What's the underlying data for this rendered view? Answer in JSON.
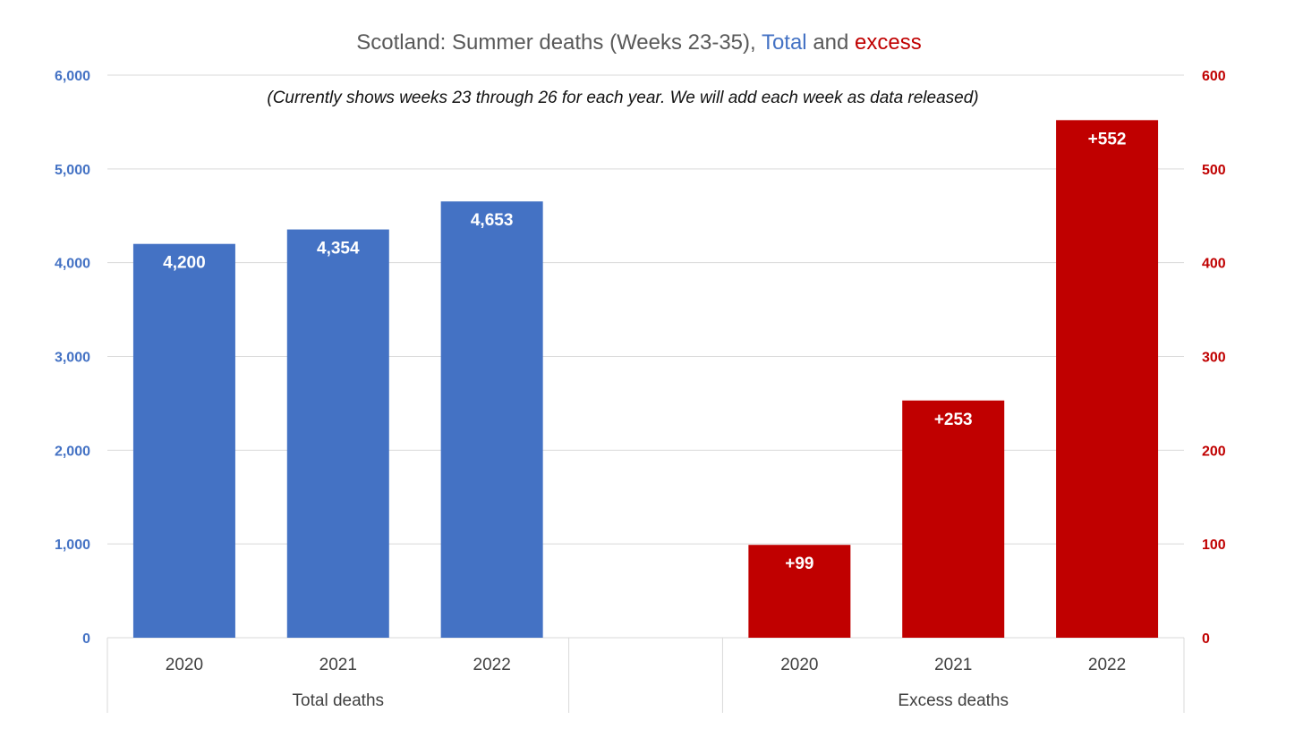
{
  "chart_data": {
    "type": "bar",
    "title": {
      "part1": "Scotland: Summer deaths (Weeks 23-35),",
      "part2": "Total",
      "part3": "and",
      "part4": "excess"
    },
    "subtitle": "(Currently shows weeks 23 through 26 for each year. We will add each week as data released)",
    "left_axis": {
      "ylim": [
        0,
        6000
      ],
      "ticks": [
        "0",
        "1,000",
        "2,000",
        "3,000",
        "4,000",
        "5,000",
        "6,000"
      ],
      "color": "#4472C4"
    },
    "right_axis": {
      "ylim": [
        0,
        600
      ],
      "ticks": [
        "0",
        "100",
        "200",
        "300",
        "400",
        "500",
        "600"
      ],
      "color": "#C00000"
    },
    "grid": true,
    "groups": [
      {
        "name": "Total deaths",
        "axis": "left",
        "color": "#4472C4",
        "categories": [
          "2020",
          "2021",
          "2022"
        ],
        "values": [
          4200,
          4354,
          4653
        ],
        "labels": [
          "4,200",
          "4,354",
          "4,653"
        ]
      },
      {
        "name": "Excess deaths",
        "axis": "right",
        "color": "#C00000",
        "categories": [
          "2020",
          "2021",
          "2022"
        ],
        "values": [
          99,
          253,
          552
        ],
        "labels": [
          "+99",
          "+253",
          "+552"
        ]
      }
    ]
  }
}
